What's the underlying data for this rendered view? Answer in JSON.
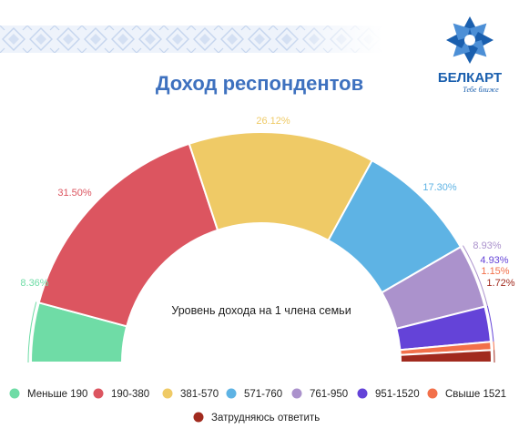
{
  "brand": {
    "name": "БЕЛКАРТ",
    "slogan": "Тебе ближе",
    "logo_icon": "belkart-star-icon",
    "ornament_icon": "belarusian-ornament-band",
    "brand_color": "#1a5fae"
  },
  "chart_data": {
    "type": "pie",
    "variant": "semi-donut",
    "title": "Доход респондентов",
    "center_label": "Уровень дохода на 1 члена семьи",
    "legend_position": "bottom",
    "slices": [
      {
        "name": "Меньше 190",
        "value": 8.36,
        "label": "8.36%",
        "color": "#6fdca6"
      },
      {
        "name": "190-380",
        "value": 31.5,
        "label": "31.50%",
        "color": "#dc5560"
      },
      {
        "name": "381-570",
        "value": 26.12,
        "label": "26.12%",
        "color": "#efca66"
      },
      {
        "name": "571-760",
        "value": 17.3,
        "label": "17.30%",
        "color": "#5eb3e4"
      },
      {
        "name": "761-950",
        "value": 8.93,
        "label": "8.93%",
        "color": "#ab92cc"
      },
      {
        "name": "951-1520",
        "value": 4.93,
        "label": "4.93%",
        "color": "#6443d8"
      },
      {
        "name": "Свыше 1521",
        "value": 1.15,
        "label": "1.15%",
        "color": "#f2704a"
      },
      {
        "name": "Затрудняюсь ответить",
        "value": 1.72,
        "label": "1.72%",
        "color": "#a12a1e"
      }
    ]
  }
}
